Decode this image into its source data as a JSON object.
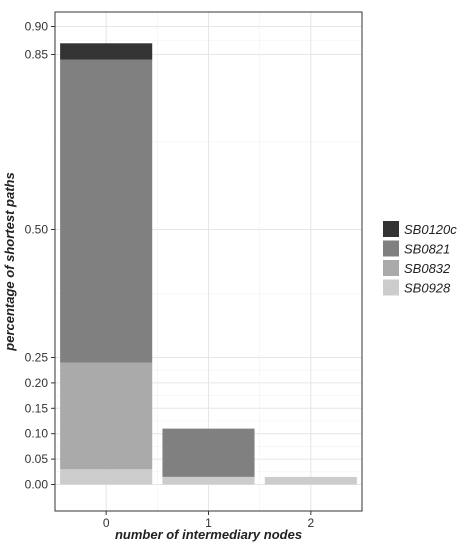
{
  "chart_data": {
    "type": "bar",
    "stacked": true,
    "xlabel": "number of intermediary nodes",
    "ylabel": "percentage of shortest paths",
    "categories": [
      "0",
      "1",
      "2"
    ],
    "y_ticks": [
      "0.00",
      "0.05",
      "0.10",
      "0.15",
      "0.20",
      "0.25",
      "0.50",
      "0.85",
      "0.90"
    ],
    "ylim": [
      0,
      0.9
    ],
    "y_scale": "non-linear",
    "grid": true,
    "legend_position": "right",
    "series": [
      {
        "name": "SB0928",
        "color": "#cccccc",
        "values": [
          0.03,
          0.015,
          0.015
        ]
      },
      {
        "name": "SB0832",
        "color": "#aaaaaa",
        "values": [
          0.21,
          0,
          0
        ]
      },
      {
        "name": "SB0821",
        "color": "#808080",
        "values": [
          0.6,
          0.095,
          0
        ]
      },
      {
        "name": "SB0120c",
        "color": "#333333",
        "values": [
          0.03,
          0,
          0
        ]
      }
    ],
    "legend_order": [
      "SB0120c",
      "SB0821",
      "SB0832",
      "SB0928"
    ]
  }
}
